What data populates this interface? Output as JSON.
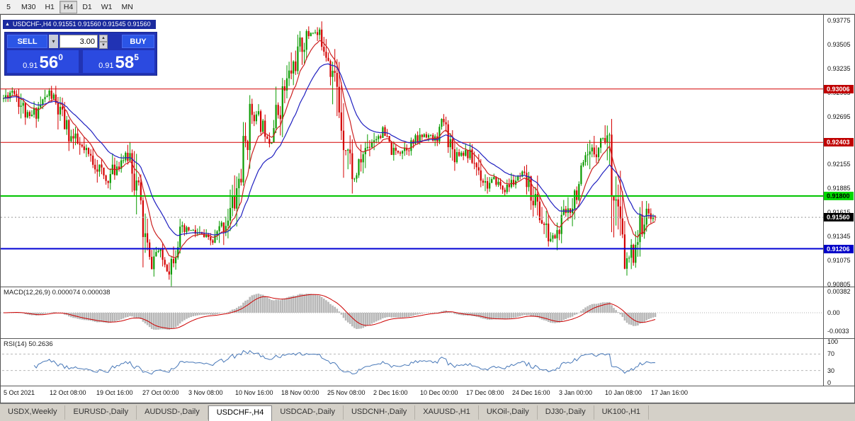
{
  "toolbar": {
    "timeframes": [
      {
        "label": "5",
        "active": false
      },
      {
        "label": "M30",
        "active": false
      },
      {
        "label": "H1",
        "active": false
      },
      {
        "label": "H4",
        "active": true
      },
      {
        "label": "D1",
        "active": false
      },
      {
        "label": "W1",
        "active": false
      },
      {
        "label": "MN",
        "active": false
      }
    ]
  },
  "chart": {
    "ohlc_strip": "USDCHF-,H4  0.91551 0.91560 0.91545 0.91560",
    "trade_panel": {
      "sell_label": "SELL",
      "buy_label": "BUY",
      "lot_size": "3.00",
      "sell_price_small": "0.91",
      "sell_price_big": "56",
      "sell_price_sup": "0",
      "buy_price_small": "0.91",
      "buy_price_big": "58",
      "buy_price_sup": "5"
    },
    "y_range": {
      "max": 0.9384,
      "min": 0.9078
    },
    "y_ticks": [
      {
        "v": 0.93775,
        "label": "0.93775"
      },
      {
        "v": 0.93505,
        "label": "0.93505"
      },
      {
        "v": 0.93235,
        "label": "0.93235"
      },
      {
        "v": 0.92965,
        "label": "0.92965"
      },
      {
        "v": 0.92695,
        "label": "0.92695"
      },
      {
        "v": 0.92425,
        "label": "0.92425"
      },
      {
        "v": 0.92155,
        "label": "0.92155"
      },
      {
        "v": 0.91885,
        "label": "0.91885"
      },
      {
        "v": 0.91615,
        "label": "0.91615"
      },
      {
        "v": 0.91345,
        "label": "0.91345"
      },
      {
        "v": 0.91075,
        "label": "0.91075"
      },
      {
        "v": 0.90805,
        "label": "0.90805"
      }
    ],
    "levels": [
      {
        "price": 0.93006,
        "label": "0.93006",
        "color": "#d40000",
        "badge": "#c00000",
        "text": "#ffffff",
        "width": 1,
        "name": "resistance-line-0.93006"
      },
      {
        "price": 0.92403,
        "label": "0.92403",
        "color": "#d40000",
        "badge": "#c00000",
        "text": "#ffffff",
        "width": 1,
        "name": "resistance-line-0.92403"
      },
      {
        "price": 0.918,
        "label": "0.91800",
        "color": "#00c400",
        "badge": "#00d800",
        "text": "#000000",
        "width": 2,
        "name": "support-line-0.91800"
      },
      {
        "price": 0.91206,
        "label": "0.91206",
        "color": "#0000d4",
        "badge": "#0000c8",
        "text": "#ffffff",
        "width": 2,
        "name": "support-line-0.91206"
      }
    ],
    "current_price": {
      "value": 0.9156,
      "label": "0.91560",
      "badge": "#000000",
      "text": "#ffffff"
    },
    "x_labels": [
      "5 Oct 2021",
      "12 Oct 08:00",
      "19 Oct 16:00",
      "27 Oct 00:00",
      "3 Nov 08:00",
      "10 Nov 16:00",
      "18 Nov 00:00",
      "25 Nov 08:00",
      "2 Dec 16:00",
      "10 Dec 00:00",
      "17 Dec 08:00",
      "24 Dec 16:00",
      "3 Jan 00:00",
      "10 Jan 08:00",
      "17 Jan 16:00"
    ]
  },
  "chart_data": {
    "type": "candlestick",
    "symbol": "USDCHF-",
    "timeframe": "H4",
    "ohlc_current": {
      "open": "0.91551",
      "high": "0.91560",
      "low": "0.91545",
      "close": "0.91560"
    },
    "bull_color": "#0a9b00",
    "bear_color": "#d40000",
    "price_path": [
      [
        0.0,
        0.929
      ],
      [
        0.016,
        0.9301
      ],
      [
        0.038,
        0.9266
      ],
      [
        0.054,
        0.928
      ],
      [
        0.071,
        0.9297
      ],
      [
        0.087,
        0.927
      ],
      [
        0.103,
        0.9247
      ],
      [
        0.125,
        0.9228
      ],
      [
        0.141,
        0.9218
      ],
      [
        0.158,
        0.9196
      ],
      [
        0.179,
        0.9221
      ],
      [
        0.196,
        0.9227
      ],
      [
        0.212,
        0.9152
      ],
      [
        0.225,
        0.9101
      ],
      [
        0.236,
        0.912
      ],
      [
        0.253,
        0.9096
      ],
      [
        0.268,
        0.9134
      ],
      [
        0.284,
        0.9142
      ],
      [
        0.304,
        0.9135
      ],
      [
        0.321,
        0.9128
      ],
      [
        0.337,
        0.9147
      ],
      [
        0.353,
        0.917
      ],
      [
        0.366,
        0.9214
      ],
      [
        0.38,
        0.9277
      ],
      [
        0.395,
        0.9262
      ],
      [
        0.408,
        0.9243
      ],
      [
        0.424,
        0.9284
      ],
      [
        0.44,
        0.9318
      ],
      [
        0.457,
        0.9349
      ],
      [
        0.473,
        0.9367
      ],
      [
        0.489,
        0.9356
      ],
      [
        0.5,
        0.9341
      ],
      [
        0.511,
        0.9295
      ],
      [
        0.525,
        0.9246
      ],
      [
        0.538,
        0.9196
      ],
      [
        0.551,
        0.9227
      ],
      [
        0.565,
        0.9244
      ],
      [
        0.582,
        0.9251
      ],
      [
        0.598,
        0.9228
      ],
      [
        0.614,
        0.9234
      ],
      [
        0.63,
        0.924
      ],
      [
        0.647,
        0.9251
      ],
      [
        0.663,
        0.9241
      ],
      [
        0.674,
        0.9268
      ],
      [
        0.69,
        0.9228
      ],
      [
        0.71,
        0.923
      ],
      [
        0.725,
        0.9215
      ],
      [
        0.742,
        0.9192
      ],
      [
        0.755,
        0.9198
      ],
      [
        0.768,
        0.9186
      ],
      [
        0.78,
        0.9195
      ],
      [
        0.796,
        0.9202
      ],
      [
        0.81,
        0.9186
      ],
      [
        0.823,
        0.916
      ],
      [
        0.837,
        0.9131
      ],
      [
        0.851,
        0.9138
      ],
      [
        0.864,
        0.9162
      ],
      [
        0.88,
        0.919
      ],
      [
        0.897,
        0.9218
      ],
      [
        0.913,
        0.924
      ],
      [
        0.925,
        0.9251
      ],
      [
        0.935,
        0.9206
      ],
      [
        0.946,
        0.9136
      ],
      [
        0.955,
        0.9101
      ],
      [
        0.967,
        0.9122
      ],
      [
        0.978,
        0.9148
      ],
      [
        0.989,
        0.916
      ],
      [
        1.0,
        0.9156
      ]
    ],
    "generation": {
      "count": 300,
      "seed": 11,
      "base_volatility": 0.00035
    },
    "moving_averages": [
      {
        "period": 10,
        "color": "#cc2020"
      },
      {
        "period": 24,
        "color": "#2020c0"
      }
    ],
    "macd": {
      "fast": 12,
      "slow": 26,
      "signal": 9,
      "current": "0.000074 0.000038",
      "histogram_color": "#b8b8b8",
      "signal_color": "#cc0000"
    },
    "rsi": {
      "period": 14,
      "current": 50.2636,
      "color": "#4878b8",
      "levels": [
        70,
        30
      ]
    }
  },
  "macd_panel": {
    "label": "MACD(12,26,9) 0.000074 0.000038",
    "ticks": [
      {
        "v": 0.00382,
        "label": "0.00382"
      },
      {
        "v": 0,
        "label": "0.00"
      },
      {
        "v": -0.0033,
        "label": "-0.0033"
      }
    ]
  },
  "rsi_panel": {
    "label": "RSI(14) 50.2636",
    "ticks": [
      {
        "v": 100,
        "label": "100"
      },
      {
        "v": 70,
        "label": "70"
      },
      {
        "v": 30,
        "label": "30"
      },
      {
        "v": 0,
        "label": "0"
      }
    ]
  },
  "tabs": [
    {
      "label": "USDX,Weekly",
      "active": false
    },
    {
      "label": "EURUSD-,Daily",
      "active": false
    },
    {
      "label": "AUDUSD-,Daily",
      "active": false
    },
    {
      "label": "USDCHF-,H4",
      "active": true
    },
    {
      "label": "USDCAD-,Daily",
      "active": false
    },
    {
      "label": "USDCNH-,Daily",
      "active": false
    },
    {
      "label": "XAUUSD-,H1",
      "active": false
    },
    {
      "label": "UKOil-,Daily",
      "active": false
    },
    {
      "label": "DJ30-,Daily",
      "active": false
    },
    {
      "label": "UK100-,H1",
      "active": false
    }
  ]
}
